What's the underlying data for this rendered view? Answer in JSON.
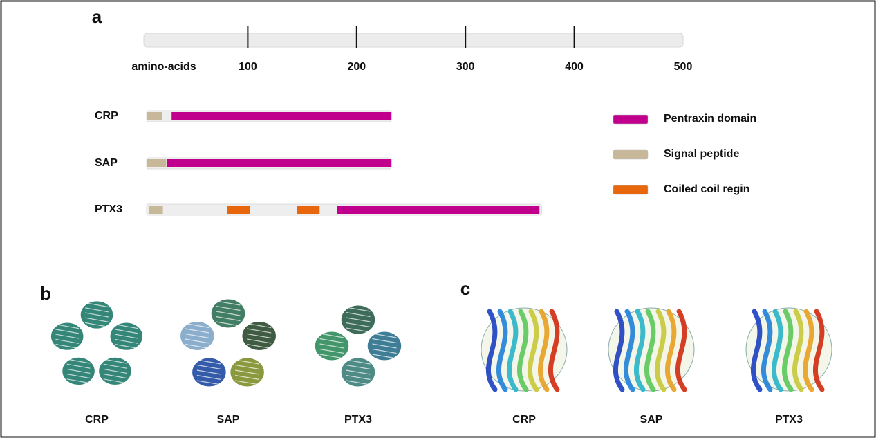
{
  "panel_a": {
    "label": "a",
    "scale": {
      "label": "amino-acids",
      "xlim": [
        0,
        500
      ],
      "ticks": [
        100,
        200,
        300,
        400,
        500
      ]
    },
    "proteins": [
      {
        "name": "CRP",
        "extent": [
          7,
          232
        ],
        "domains": [
          {
            "color": "#c8b89a",
            "start": 7,
            "end": 21
          },
          {
            "color": "#c0008c",
            "start": 30,
            "end": 232
          }
        ]
      },
      {
        "name": "SAP",
        "extent": [
          7,
          232
        ],
        "domains": [
          {
            "color": "#c8b89a",
            "start": 7,
            "end": 25
          },
          {
            "color": "#c0008c",
            "start": 26,
            "end": 232
          }
        ]
      },
      {
        "name": "PTX3",
        "extent": [
          7,
          370
        ],
        "domains": [
          {
            "color": "#c8b89a",
            "start": 9,
            "end": 22
          },
          {
            "color": "#e8660c",
            "start": 81,
            "end": 102
          },
          {
            "color": "#e8660c",
            "start": 145,
            "end": 166
          },
          {
            "color": "#c0008c",
            "start": 182,
            "end": 368
          }
        ]
      }
    ],
    "legend": [
      {
        "label": "Pentraxin domain",
        "color": "#c0008c"
      },
      {
        "label": "Signal peptide",
        "color": "#c8b89a"
      },
      {
        "label": "Coiled coil regin",
        "color": "#e8660c"
      }
    ]
  },
  "panel_b": {
    "label": "b",
    "captions": [
      "CRP",
      "SAP",
      "PTX3"
    ]
  },
  "panel_c": {
    "label": "c",
    "captions": [
      "CRP",
      "SAP",
      "PTX3"
    ]
  }
}
